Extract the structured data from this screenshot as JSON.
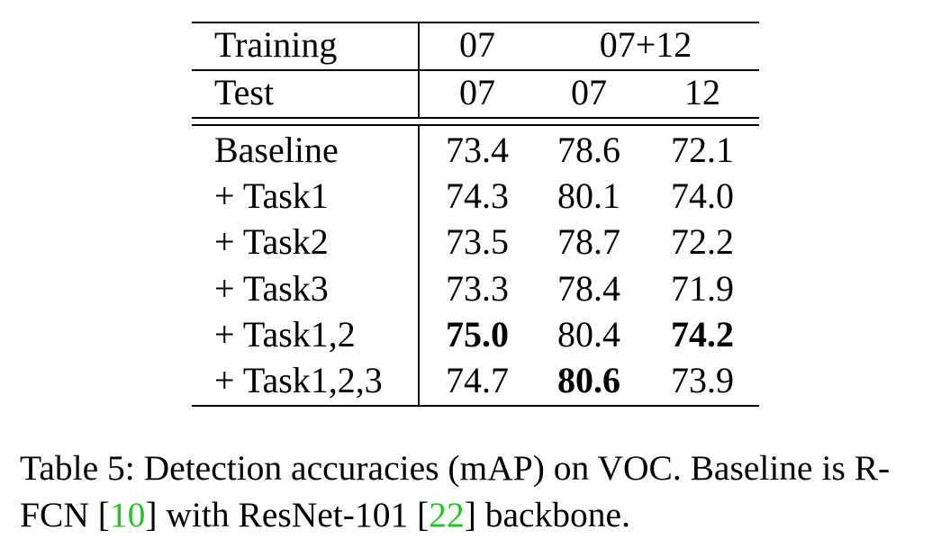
{
  "table": {
    "header": {
      "training_label": "Training",
      "training_07": "07",
      "training_0712": "07+12",
      "test_label": "Test",
      "test_values": [
        "07",
        "07",
        "12"
      ]
    },
    "rows": [
      {
        "label": "Baseline",
        "values": [
          "73.4",
          "78.6",
          "72.1"
        ]
      },
      {
        "label": "+ Task1",
        "values": [
          "74.3",
          "80.1",
          "74.0"
        ]
      },
      {
        "label": "+ Task2",
        "values": [
          "73.5",
          "78.7",
          "72.2"
        ]
      },
      {
        "label": "+ Task3",
        "values": [
          "73.3",
          "78.4",
          "71.9"
        ]
      },
      {
        "label": "+ Task1,2",
        "values": [
          "75.0",
          "80.4",
          "74.2"
        ]
      },
      {
        "label": "+ Task1,2,3",
        "values": [
          "74.7",
          "80.6",
          "73.9"
        ]
      }
    ],
    "bold_cells": [
      "+ Task1,2 / 07",
      "+ Task1,2 / 12",
      "+ Task1,2,3 / 07+12 07"
    ]
  },
  "caption": {
    "prefix": "Table 5: Detection accuracies (mAP) on VOC. Baseline is R-FCN [",
    "ref1": "10",
    "middle": "] with ResNet-101 [",
    "ref2": "22",
    "suffix": "] backbone.",
    "ref_color": "#21c621"
  }
}
